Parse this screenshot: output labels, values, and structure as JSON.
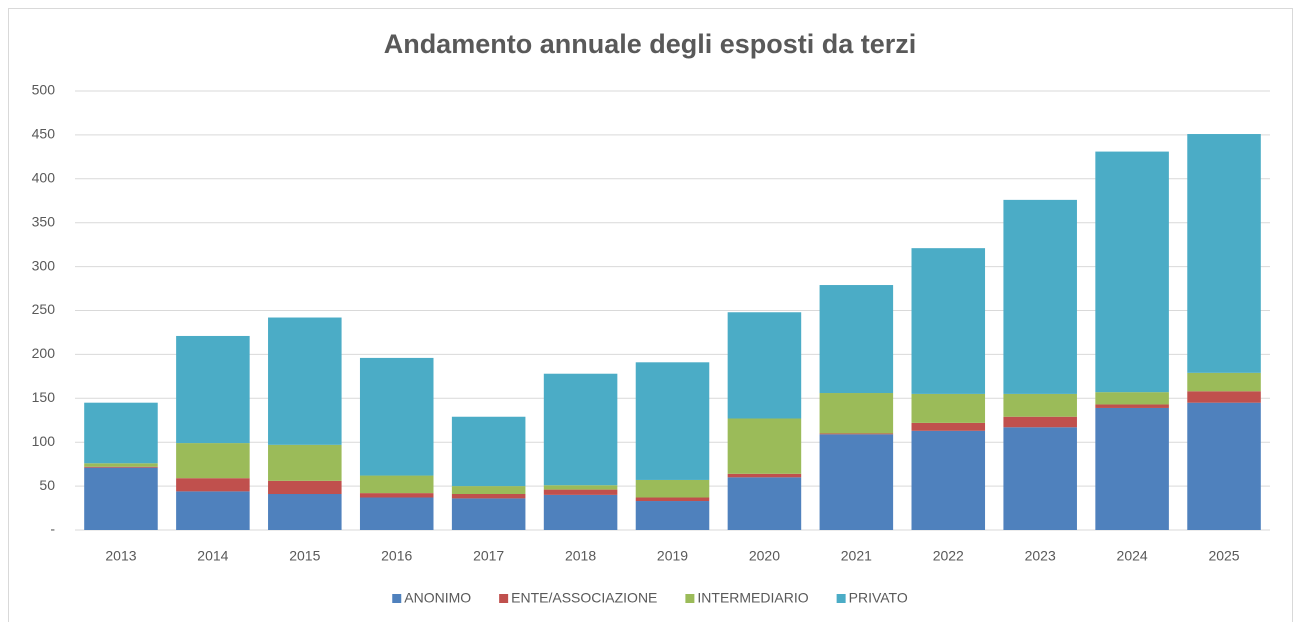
{
  "chart_data": {
    "type": "stacked_bar",
    "title": "Andamento annuale degli esposti da terzi",
    "categories": [
      "2013",
      "2014",
      "2015",
      "2016",
      "2017",
      "2018",
      "2019",
      "2020",
      "2021",
      "2022",
      "2023",
      "2024",
      "2025"
    ],
    "series": [
      {
        "name": "ANONIMO",
        "color": "#4f81bd",
        "values": [
          71,
          44,
          41,
          37,
          36,
          40,
          33,
          60,
          109,
          113,
          117,
          139,
          145
        ]
      },
      {
        "name": "ENTE/ASSOCIAZIONE",
        "color": "#c0504d",
        "values": [
          1,
          15,
          15,
          5,
          5,
          6,
          4,
          4,
          1,
          9,
          12,
          4,
          13
        ]
      },
      {
        "name": "INTERMEDIARIO",
        "color": "#9bbb59",
        "values": [
          4,
          40,
          41,
          20,
          9,
          5,
          20,
          63,
          46,
          33,
          26,
          14,
          21
        ]
      },
      {
        "name": "PRIVATO",
        "color": "#4bacc6",
        "values": [
          69,
          122,
          145,
          134,
          79,
          127,
          134,
          121,
          123,
          166,
          221,
          274,
          272
        ]
      }
    ],
    "ylim": [
      0,
      500
    ],
    "yticks": [
      {
        "value": 0,
        "label": "-"
      },
      50,
      100,
      150,
      200,
      250,
      300,
      350,
      400,
      450,
      500
    ],
    "grid": true,
    "legend": "bottom"
  }
}
